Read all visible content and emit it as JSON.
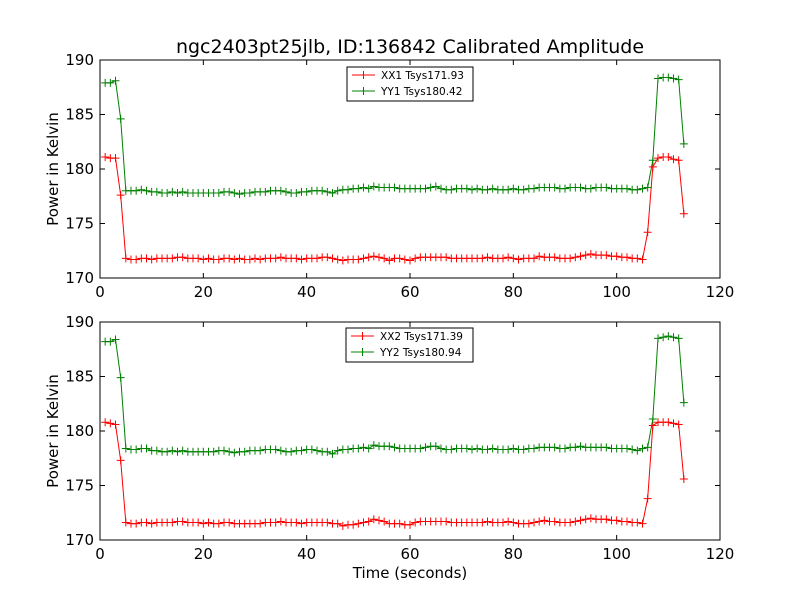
{
  "title": "ngc2403pt25jlb, ID:136842 Calibrated Amplitude",
  "colors": {
    "red": "#ff0000",
    "green": "#008000"
  },
  "chart_data": [
    {
      "type": "line",
      "xlabel": "",
      "ylabel": "Power in Kelvin",
      "xlim": [
        0,
        120
      ],
      "ylim": [
        170,
        190
      ],
      "xticks": [
        "0",
        "20",
        "40",
        "60",
        "80",
        "100",
        "120"
      ],
      "yticks": [
        "170",
        "175",
        "180",
        "185",
        "190"
      ],
      "legend_position": "top-center",
      "grid": false,
      "series": [
        {
          "name": "XX1 Tsys171.93",
          "color": "#ff0000",
          "x": [
            1,
            2,
            3,
            4,
            5,
            6,
            7,
            8,
            9,
            10,
            11,
            12,
            13,
            14,
            15,
            16,
            17,
            18,
            19,
            20,
            21,
            22,
            23,
            24,
            25,
            26,
            27,
            28,
            29,
            30,
            31,
            32,
            33,
            34,
            35,
            36,
            37,
            38,
            39,
            40,
            41,
            42,
            43,
            44,
            45,
            46,
            47,
            48,
            49,
            50,
            51,
            52,
            53,
            54,
            55,
            56,
            57,
            58,
            59,
            60,
            61,
            62,
            63,
            64,
            65,
            66,
            67,
            68,
            69,
            70,
            71,
            72,
            73,
            74,
            75,
            76,
            77,
            78,
            79,
            80,
            81,
            82,
            83,
            84,
            85,
            86,
            87,
            88,
            89,
            90,
            91,
            92,
            93,
            94,
            95,
            96,
            97,
            98,
            99,
            100,
            101,
            102,
            103,
            104,
            105,
            106,
            107,
            108,
            109,
            110,
            111,
            112,
            113
          ],
          "y": [
            181.1,
            181.0,
            181.0,
            177.6,
            171.8,
            171.7,
            171.7,
            171.8,
            171.8,
            171.7,
            171.8,
            171.8,
            171.8,
            171.8,
            171.9,
            171.9,
            171.8,
            171.8,
            171.8,
            171.7,
            171.8,
            171.7,
            171.7,
            171.8,
            171.8,
            171.7,
            171.8,
            171.7,
            171.7,
            171.8,
            171.7,
            171.8,
            171.8,
            171.8,
            171.9,
            171.8,
            171.8,
            171.8,
            171.7,
            171.8,
            171.8,
            171.8,
            171.9,
            171.9,
            171.8,
            171.7,
            171.6,
            171.7,
            171.7,
            171.7,
            171.8,
            171.9,
            172.0,
            171.9,
            171.8,
            171.6,
            171.8,
            171.8,
            171.7,
            171.6,
            171.8,
            171.9,
            171.9,
            171.9,
            171.9,
            171.9,
            171.9,
            171.8,
            171.8,
            171.8,
            171.8,
            171.8,
            171.8,
            171.8,
            171.9,
            171.8,
            171.8,
            171.8,
            171.9,
            171.8,
            171.7,
            171.8,
            171.8,
            171.8,
            172.0,
            171.9,
            171.9,
            171.9,
            171.8,
            171.8,
            171.8,
            171.9,
            172.0,
            172.1,
            172.2,
            172.1,
            172.1,
            172.1,
            172.0,
            172.0,
            171.9,
            171.9,
            171.8,
            171.8,
            171.7,
            174.2,
            180.2,
            181.0,
            181.1,
            181.1,
            180.9,
            180.8,
            175.9
          ]
        },
        {
          "name": "YY1 Tsys180.42",
          "color": "#008000",
          "x": [
            1,
            2,
            3,
            4,
            5,
            6,
            7,
            8,
            9,
            10,
            11,
            12,
            13,
            14,
            15,
            16,
            17,
            18,
            19,
            20,
            21,
            22,
            23,
            24,
            25,
            26,
            27,
            28,
            29,
            30,
            31,
            32,
            33,
            34,
            35,
            36,
            37,
            38,
            39,
            40,
            41,
            42,
            43,
            44,
            45,
            46,
            47,
            48,
            49,
            50,
            51,
            52,
            53,
            54,
            55,
            56,
            57,
            58,
            59,
            60,
            61,
            62,
            63,
            64,
            65,
            66,
            67,
            68,
            69,
            70,
            71,
            72,
            73,
            74,
            75,
            76,
            77,
            78,
            79,
            80,
            81,
            82,
            83,
            84,
            85,
            86,
            87,
            88,
            89,
            90,
            91,
            92,
            93,
            94,
            95,
            96,
            97,
            98,
            99,
            100,
            101,
            102,
            103,
            104,
            105,
            106,
            107,
            108,
            109,
            110,
            111,
            112,
            113
          ],
          "y": [
            187.9,
            187.9,
            188.1,
            184.6,
            178.0,
            178.0,
            178.0,
            178.1,
            178.0,
            177.9,
            177.9,
            177.8,
            177.8,
            177.9,
            177.8,
            177.9,
            177.8,
            177.8,
            177.8,
            177.8,
            177.8,
            177.8,
            177.8,
            177.9,
            177.9,
            177.8,
            177.7,
            177.8,
            177.8,
            177.9,
            177.9,
            177.9,
            178.0,
            178.0,
            178.0,
            177.9,
            177.8,
            177.8,
            177.9,
            177.9,
            178.0,
            178.0,
            178.0,
            177.9,
            177.8,
            178.0,
            178.1,
            178.1,
            178.2,
            178.2,
            178.3,
            178.2,
            178.4,
            178.3,
            178.3,
            178.3,
            178.3,
            178.2,
            178.2,
            178.2,
            178.2,
            178.2,
            178.2,
            178.3,
            178.4,
            178.2,
            178.1,
            178.1,
            178.2,
            178.2,
            178.2,
            178.1,
            178.2,
            178.1,
            178.1,
            178.2,
            178.1,
            178.1,
            178.1,
            178.2,
            178.1,
            178.1,
            178.2,
            178.2,
            178.3,
            178.3,
            178.3,
            178.3,
            178.2,
            178.2,
            178.3,
            178.3,
            178.3,
            178.2,
            178.2,
            178.3,
            178.3,
            178.3,
            178.2,
            178.2,
            178.2,
            178.2,
            178.1,
            178.1,
            178.2,
            178.3,
            180.8,
            188.3,
            188.4,
            188.4,
            188.3,
            188.2,
            182.3
          ]
        }
      ]
    },
    {
      "type": "line",
      "xlabel": "Time (seconds)",
      "ylabel": "Power in Kelvin",
      "xlim": [
        0,
        120
      ],
      "ylim": [
        170,
        190
      ],
      "xticks": [
        "0",
        "20",
        "40",
        "60",
        "80",
        "100",
        "120"
      ],
      "yticks": [
        "170",
        "175",
        "180",
        "185",
        "190"
      ],
      "legend_position": "top-center",
      "grid": false,
      "series": [
        {
          "name": "XX2 Tsys171.39",
          "color": "#ff0000",
          "x": [
            1,
            2,
            3,
            4,
            5,
            6,
            7,
            8,
            9,
            10,
            11,
            12,
            13,
            14,
            15,
            16,
            17,
            18,
            19,
            20,
            21,
            22,
            23,
            24,
            25,
            26,
            27,
            28,
            29,
            30,
            31,
            32,
            33,
            34,
            35,
            36,
            37,
            38,
            39,
            40,
            41,
            42,
            43,
            44,
            45,
            46,
            47,
            48,
            49,
            50,
            51,
            52,
            53,
            54,
            55,
            56,
            57,
            58,
            59,
            60,
            61,
            62,
            63,
            64,
            65,
            66,
            67,
            68,
            69,
            70,
            71,
            72,
            73,
            74,
            75,
            76,
            77,
            78,
            79,
            80,
            81,
            82,
            83,
            84,
            85,
            86,
            87,
            88,
            89,
            90,
            91,
            92,
            93,
            94,
            95,
            96,
            97,
            98,
            99,
            100,
            101,
            102,
            103,
            104,
            105,
            106,
            107,
            108,
            109,
            110,
            111,
            112,
            113
          ],
          "y": [
            180.8,
            180.7,
            180.6,
            177.3,
            171.6,
            171.5,
            171.5,
            171.6,
            171.6,
            171.5,
            171.6,
            171.6,
            171.6,
            171.6,
            171.7,
            171.7,
            171.6,
            171.6,
            171.6,
            171.5,
            171.6,
            171.5,
            171.5,
            171.6,
            171.6,
            171.5,
            171.5,
            171.5,
            171.5,
            171.5,
            171.5,
            171.6,
            171.6,
            171.6,
            171.7,
            171.6,
            171.6,
            171.6,
            171.5,
            171.6,
            171.6,
            171.6,
            171.6,
            171.6,
            171.5,
            171.5,
            171.3,
            171.4,
            171.4,
            171.5,
            171.6,
            171.7,
            171.9,
            171.8,
            171.7,
            171.5,
            171.5,
            171.5,
            171.4,
            171.4,
            171.6,
            171.7,
            171.7,
            171.7,
            171.7,
            171.7,
            171.7,
            171.6,
            171.6,
            171.6,
            171.6,
            171.6,
            171.6,
            171.6,
            171.7,
            171.6,
            171.6,
            171.6,
            171.7,
            171.6,
            171.5,
            171.5,
            171.5,
            171.6,
            171.7,
            171.8,
            171.7,
            171.7,
            171.6,
            171.6,
            171.6,
            171.7,
            171.8,
            171.9,
            172.0,
            171.9,
            171.9,
            171.9,
            171.8,
            171.8,
            171.7,
            171.7,
            171.6,
            171.6,
            171.5,
            173.8,
            180.5,
            180.8,
            180.8,
            180.8,
            180.7,
            180.6,
            175.6
          ]
        },
        {
          "name": "YY2 Tsys180.94",
          "color": "#008000",
          "x": [
            1,
            2,
            3,
            4,
            5,
            6,
            7,
            8,
            9,
            10,
            11,
            12,
            13,
            14,
            15,
            16,
            17,
            18,
            19,
            20,
            21,
            22,
            23,
            24,
            25,
            26,
            27,
            28,
            29,
            30,
            31,
            32,
            33,
            34,
            35,
            36,
            37,
            38,
            39,
            40,
            41,
            42,
            43,
            44,
            45,
            46,
            47,
            48,
            49,
            50,
            51,
            52,
            53,
            54,
            55,
            56,
            57,
            58,
            59,
            60,
            61,
            62,
            63,
            64,
            65,
            66,
            67,
            68,
            69,
            70,
            71,
            72,
            73,
            74,
            75,
            76,
            77,
            78,
            79,
            80,
            81,
            82,
            83,
            84,
            85,
            86,
            87,
            88,
            89,
            90,
            91,
            92,
            93,
            94,
            95,
            96,
            97,
            98,
            99,
            100,
            101,
            102,
            103,
            104,
            105,
            106,
            107,
            108,
            109,
            110,
            111,
            112,
            113
          ],
          "y": [
            188.2,
            188.2,
            188.4,
            184.9,
            178.4,
            178.3,
            178.3,
            178.4,
            178.4,
            178.2,
            178.2,
            178.1,
            178.1,
            178.2,
            178.1,
            178.2,
            178.1,
            178.1,
            178.1,
            178.1,
            178.1,
            178.1,
            178.2,
            178.2,
            178.1,
            178.0,
            178.1,
            178.1,
            178.2,
            178.2,
            178.2,
            178.3,
            178.3,
            178.3,
            178.2,
            178.1,
            178.1,
            178.2,
            178.2,
            178.3,
            178.3,
            178.2,
            178.1,
            178.1,
            177.9,
            178.2,
            178.3,
            178.3,
            178.4,
            178.4,
            178.5,
            178.4,
            178.7,
            178.6,
            178.6,
            178.6,
            178.5,
            178.4,
            178.4,
            178.4,
            178.4,
            178.4,
            178.5,
            178.6,
            178.6,
            178.4,
            178.3,
            178.3,
            178.4,
            178.4,
            178.4,
            178.3,
            178.4,
            178.3,
            178.3,
            178.4,
            178.3,
            178.3,
            178.3,
            178.4,
            178.3,
            178.3,
            178.4,
            178.4,
            178.5,
            178.5,
            178.5,
            178.5,
            178.4,
            178.4,
            178.5,
            178.5,
            178.6,
            178.5,
            178.5,
            178.5,
            178.5,
            178.5,
            178.4,
            178.4,
            178.4,
            178.4,
            178.3,
            178.2,
            178.4,
            178.5,
            181.1,
            188.5,
            188.6,
            188.7,
            188.6,
            188.5,
            182.6
          ]
        }
      ]
    }
  ]
}
